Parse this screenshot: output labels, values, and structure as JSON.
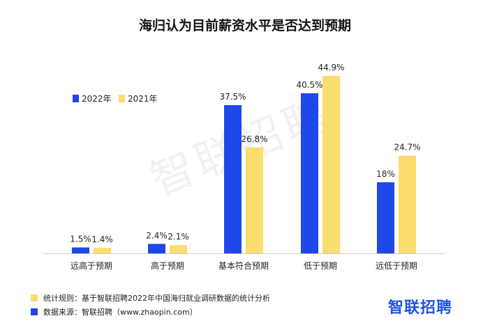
{
  "chart_data": {
    "type": "bar",
    "title": "海归认为目前薪资水平是否达到预期",
    "categories": [
      "远高于预期",
      "高于预期",
      "基本符合预期",
      "低于预期",
      "远低于预期"
    ],
    "series": [
      {
        "name": "2022年",
        "color": "#1f48e8",
        "values": [
          1.5,
          2.4,
          37.5,
          40.5,
          18
        ],
        "labels": [
          "1.5%",
          "2.4%",
          "37.5%",
          "40.5%",
          "18%"
        ]
      },
      {
        "name": "2021年",
        "color": "#fbdc6e",
        "values": [
          1.4,
          2.1,
          26.8,
          44.9,
          24.7
        ],
        "labels": [
          "1.4%",
          "2.1%",
          "26.8%",
          "44.9%",
          "24.7%"
        ]
      }
    ],
    "ylim": [
      0,
      44.9
    ],
    "legend_position": "top-left",
    "grid": false
  },
  "watermark": "智联招聘",
  "footnotes": {
    "rule": "统计规则：基于智联招聘2022年中国海归就业调研数据的统计分析",
    "source": "数据来源：智联招聘（www.zhaopin.com）"
  },
  "brand": "智联招聘"
}
